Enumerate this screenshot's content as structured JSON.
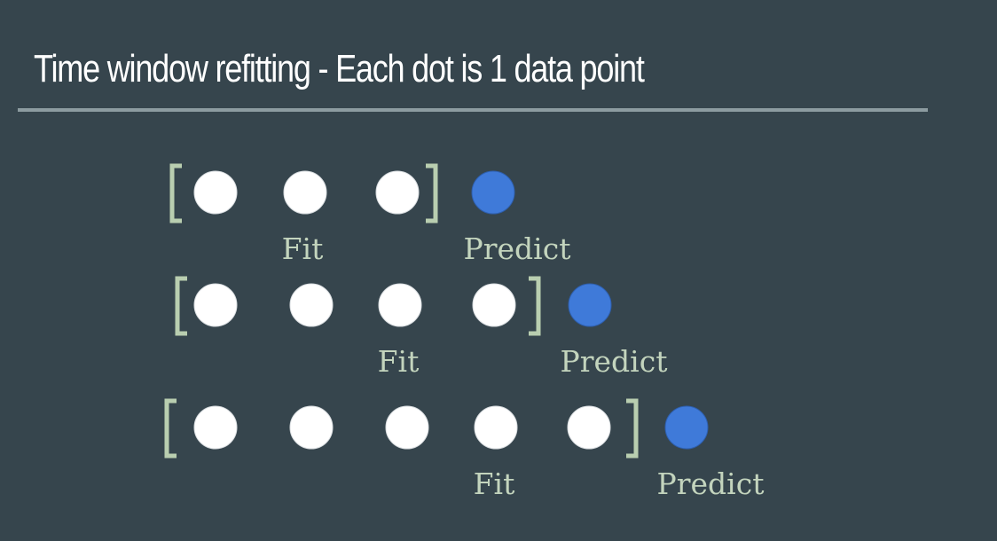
{
  "title": "Time window refitting - Each dot is 1 data point",
  "colors": {
    "background": "#36454d",
    "fit_point": "#ffffff",
    "predict_point": "#3f7ad9",
    "bracket": "#b9ceb0",
    "label": "#c3d4bd",
    "rule": "#8d9ca1"
  },
  "rows": [
    {
      "fit_points": 3,
      "predict_points": 1,
      "fit_label": "Fit",
      "predict_label": "Predict"
    },
    {
      "fit_points": 4,
      "predict_points": 1,
      "fit_label": "Fit",
      "predict_label": "Predict"
    },
    {
      "fit_points": 5,
      "predict_points": 1,
      "fit_label": "Fit",
      "predict_label": "Predict"
    }
  ]
}
